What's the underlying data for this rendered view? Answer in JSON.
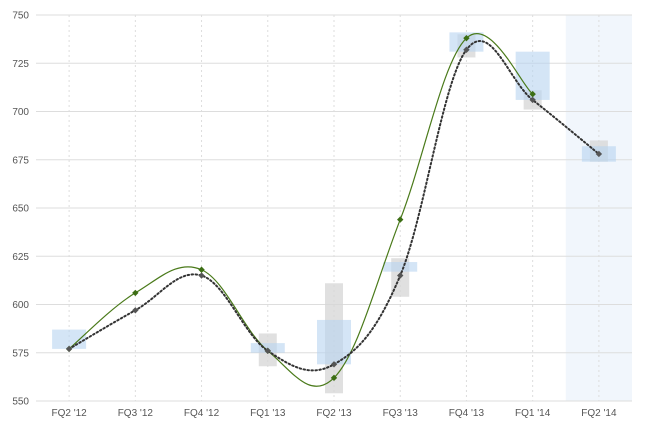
{
  "chart_data": {
    "type": "line",
    "categories": [
      "FQ2 '12",
      "FQ3 '12",
      "FQ4 '12",
      "FQ1 '13",
      "FQ2 '13",
      "FQ3 '13",
      "FQ4 '13",
      "FQ1 '14",
      "FQ2 '14"
    ],
    "yticks": [
      550,
      575,
      600,
      625,
      650,
      675,
      700,
      725,
      750
    ],
    "ylim": [
      550,
      750
    ],
    "grid": true,
    "highlight_category": "FQ2 '14",
    "series": [
      {
        "style": "solid",
        "color": "#4a7a1a",
        "marker_color": "#3c6e14",
        "values": [
          577,
          606,
          618,
          576,
          562,
          644,
          738,
          709,
          null
        ]
      },
      {
        "style": "dotted",
        "color": "#333333",
        "marker_color": "#555555",
        "values": [
          577,
          597,
          615,
          576,
          569,
          615,
          732,
          706,
          678
        ]
      }
    ],
    "gray_ranges": [
      null,
      null,
      null,
      [
        568,
        585
      ],
      [
        554,
        611
      ],
      [
        604,
        624
      ],
      [
        728,
        740
      ],
      [
        701,
        711
      ],
      [
        674,
        685
      ]
    ],
    "blue_ranges": [
      [
        577,
        587
      ],
      null,
      null,
      [
        575,
        580
      ],
      [
        569,
        592
      ],
      [
        617,
        622
      ],
      [
        731,
        741
      ],
      [
        706,
        731
      ],
      [
        674,
        682
      ]
    ]
  }
}
